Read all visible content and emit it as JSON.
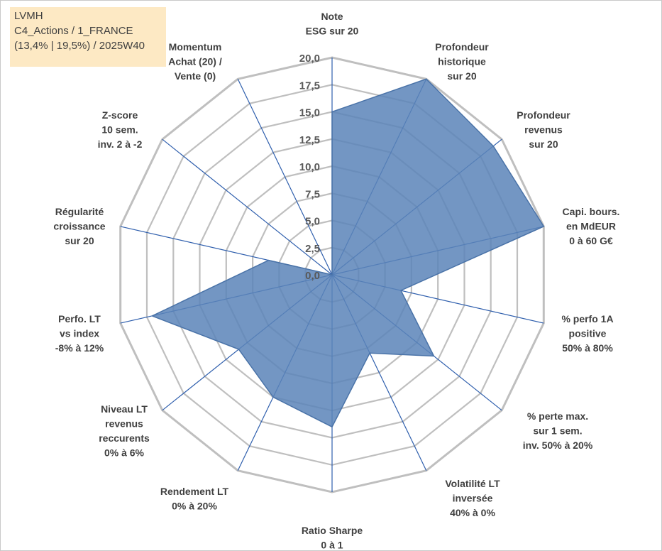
{
  "info_box": {
    "line1": "LVMH",
    "line2": "C4_Actions / 1_FRANCE",
    "line3": "(13,4% | 19,5%) / 2025W40"
  },
  "chart_data": {
    "type": "radar",
    "title": "",
    "range": [
      0,
      20
    ],
    "tick_step": 2.5,
    "ticks": [
      "0,0",
      "2,5",
      "5,0",
      "7,5",
      "10,0",
      "12,5",
      "15,0",
      "17,5",
      "20,0"
    ],
    "axes": [
      {
        "label": [
          "Note",
          "ESG sur 20"
        ],
        "value": 15
      },
      {
        "label": [
          "Profondeur",
          "historique",
          "sur 20"
        ],
        "value": 20
      },
      {
        "label": [
          "Profondeur",
          "revenus",
          "sur 20"
        ],
        "value": 19
      },
      {
        "label": [
          "Capi. bours.",
          "en MdEUR",
          "0 à 60 G€"
        ],
        "value": 20
      },
      {
        "label": [
          "% perfo 1A",
          "positive",
          "50% à 80%"
        ],
        "value": 6.5
      },
      {
        "label": [
          "% perte max.",
          "sur 1 sem.",
          "inv. 50% à 20%"
        ],
        "value": 12
      },
      {
        "label": [
          "Volatilité LT",
          "inversée",
          "40% à 0%"
        ],
        "value": 8
      },
      {
        "label": [
          "Ratio Sharpe",
          "0 à 1"
        ],
        "value": 14
      },
      {
        "label": [
          "Rendement LT",
          "0% à 20%"
        ],
        "value": 12.5
      },
      {
        "label": [
          "Niveau LT",
          "revenus",
          "reccurents",
          "0% à 6%"
        ],
        "value": 11
      },
      {
        "label": [
          "Perfo. LT",
          "vs index",
          "-8% à 12%"
        ],
        "value": 17
      },
      {
        "label": [
          "Régularité",
          "croissance",
          "sur 20"
        ],
        "value": 6
      },
      {
        "label": [
          "Z-score",
          "10 sem.",
          "inv. 2 à -2"
        ],
        "value": 0
      },
      {
        "label": [
          "Momentum",
          "Achat (20) /",
          "Vente (0)"
        ],
        "value": 0
      }
    ],
    "series": [
      {
        "name": "LVMH",
        "color": "#5b84b8"
      }
    ],
    "colors": {
      "grid": "#bfbfbf",
      "spoke": "#2f5fad",
      "fill": "#5b84b8",
      "outline": "#4a73a8"
    }
  }
}
